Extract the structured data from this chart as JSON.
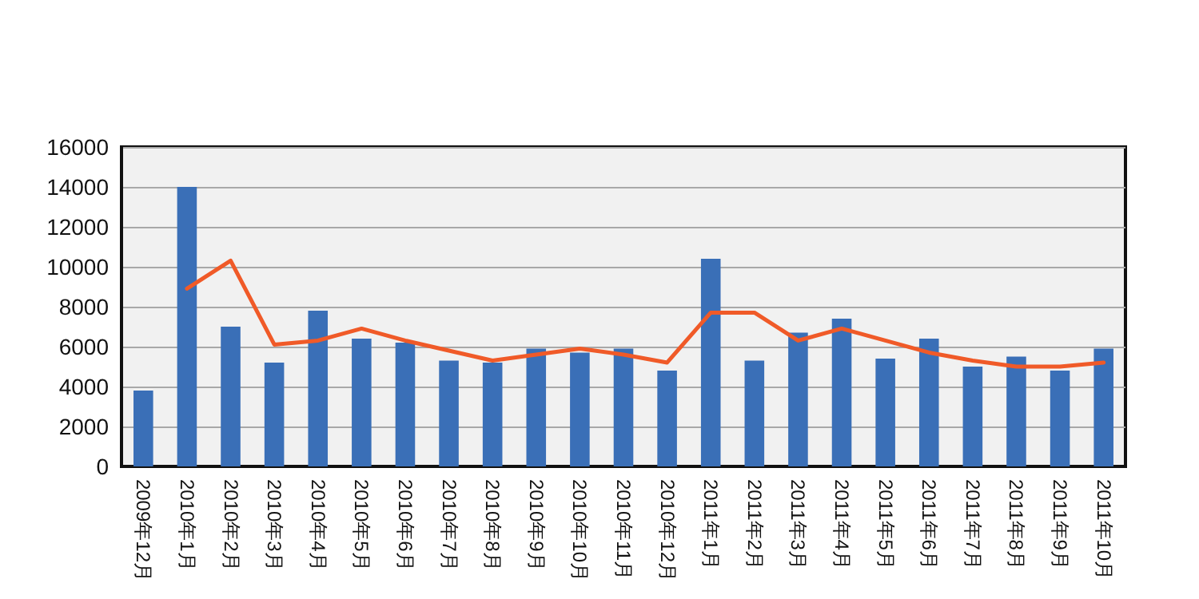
{
  "chart_data": {
    "type": "bar",
    "categories": [
      "2009年12月",
      "2010年1月",
      "2010年2月",
      "2010年3月",
      "2010年4月",
      "2010年5月",
      "2010年6月",
      "2010年7月",
      "2010年8月",
      "2010年9月",
      "2010年10月",
      "2010年11月",
      "2010年12月",
      "2011年1月",
      "2011年2月",
      "2011年3月",
      "2011年4月",
      "2011年5月",
      "2011年6月",
      "2011年7月",
      "2011年8月",
      "2011年9月",
      "2011年10月"
    ],
    "series": [
      {
        "color": "#3a6fb7",
        "values": [
          3800,
          14000,
          7000,
          5200,
          7800,
          6400,
          6200,
          5300,
          5200,
          5900,
          5700,
          5900,
          4800,
          10400,
          5300,
          6700,
          7400,
          5400,
          6400,
          5000,
          5500,
          4800,
          5900
        ]
      },
      {
        "type": "line",
        "color": "#f05a28",
        "values": [
          null,
          8900,
          10300,
          6100,
          6300,
          6900,
          6300,
          5800,
          5300,
          5600,
          5900,
          5600,
          5200,
          7700,
          7700,
          6300,
          6900,
          6300,
          5700,
          5300,
          5000,
          5000,
          5200
        ]
      }
    ],
    "ylim": [
      0,
      16000
    ],
    "yticks": [
      0,
      2000,
      4000,
      6000,
      8000,
      10000,
      12000,
      14000,
      16000
    ],
    "grid": "y",
    "marker": "none",
    "line_style": "solid"
  }
}
